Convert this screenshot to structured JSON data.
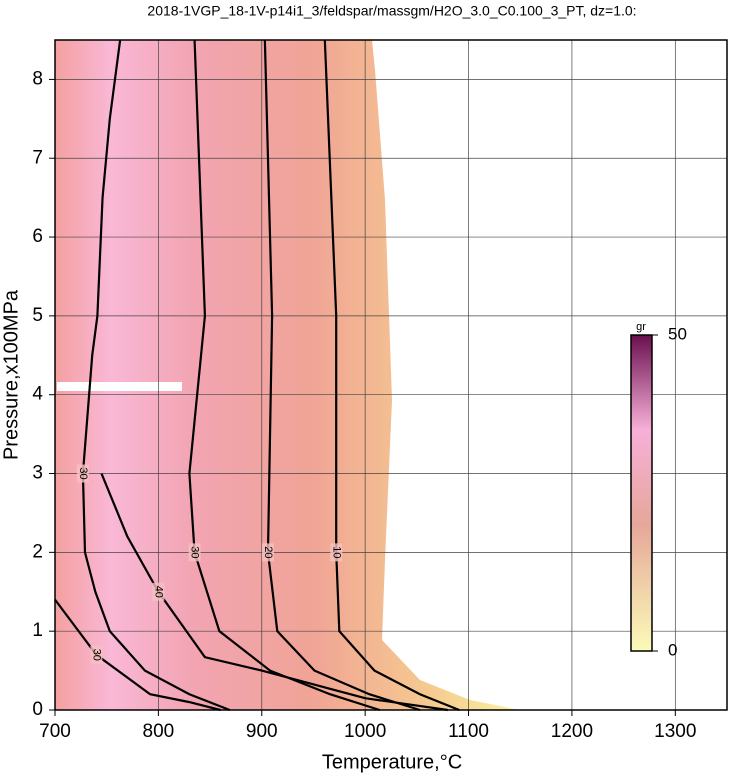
{
  "chart_data": {
    "type": "contour",
    "title": "2018-1VGP_18-1V-p14i1_3/feldspar/massgm/H2O_3.0_C0.100_3_PT, dz=1.0:",
    "x_label": "Temperature,°C",
    "y_label": "Pressure,x100MPa",
    "xlim": [
      700,
      1350
    ],
    "ylim": [
      0,
      8.5
    ],
    "xticks": [
      700,
      800,
      900,
      1000,
      1100,
      1200,
      1300
    ],
    "yticks": [
      0,
      1,
      2,
      3,
      4,
      5,
      6,
      7,
      8
    ],
    "grid": true,
    "contours": [
      {
        "level": 10,
        "x": [
          961,
          972,
          972,
          975,
          1009,
          1053,
          1091
        ],
        "y": [
          8.5,
          5,
          2,
          1,
          0.5,
          0.2,
          0
        ]
      },
      {
        "level": 20,
        "x": [
          903,
          910,
          906,
          915,
          951,
          1004,
          1053
        ],
        "y": [
          8.5,
          5,
          2,
          1,
          0.5,
          0.2,
          0
        ]
      },
      {
        "level": 30,
        "x": [
          835,
          845,
          830,
          835,
          859,
          908,
          966,
          1014
        ],
        "y": [
          8.5,
          5,
          3,
          2,
          1,
          0.5,
          0.2,
          0
        ]
      },
      {
        "level": 40,
        "x": [
          745,
          770,
          800,
          845,
          900,
          1000,
          1080
        ],
        "y": [
          3,
          2.2,
          1.5,
          0.67,
          0.5,
          0.15,
          0
        ]
      },
      {
        "level": 30,
        "x": [
          763,
          753,
          746,
          741,
          736,
          727,
          729,
          739,
          753,
          787,
          830,
          869
        ],
        "y": [
          8.5,
          7.5,
          6.5,
          5,
          4.5,
          3,
          2,
          1.5,
          1,
          0.5,
          0.2,
          0
        ]
      },
      {
        "level": 30,
        "x": [
          700,
          740,
          792,
          830,
          860
        ],
        "y": [
          1.4,
          0.7,
          0.2,
          0.1,
          0
        ]
      }
    ],
    "colorbar": {
      "label": "gr",
      "clim": [
        0,
        50
      ],
      "ticks": [
        0,
        50
      ]
    }
  }
}
